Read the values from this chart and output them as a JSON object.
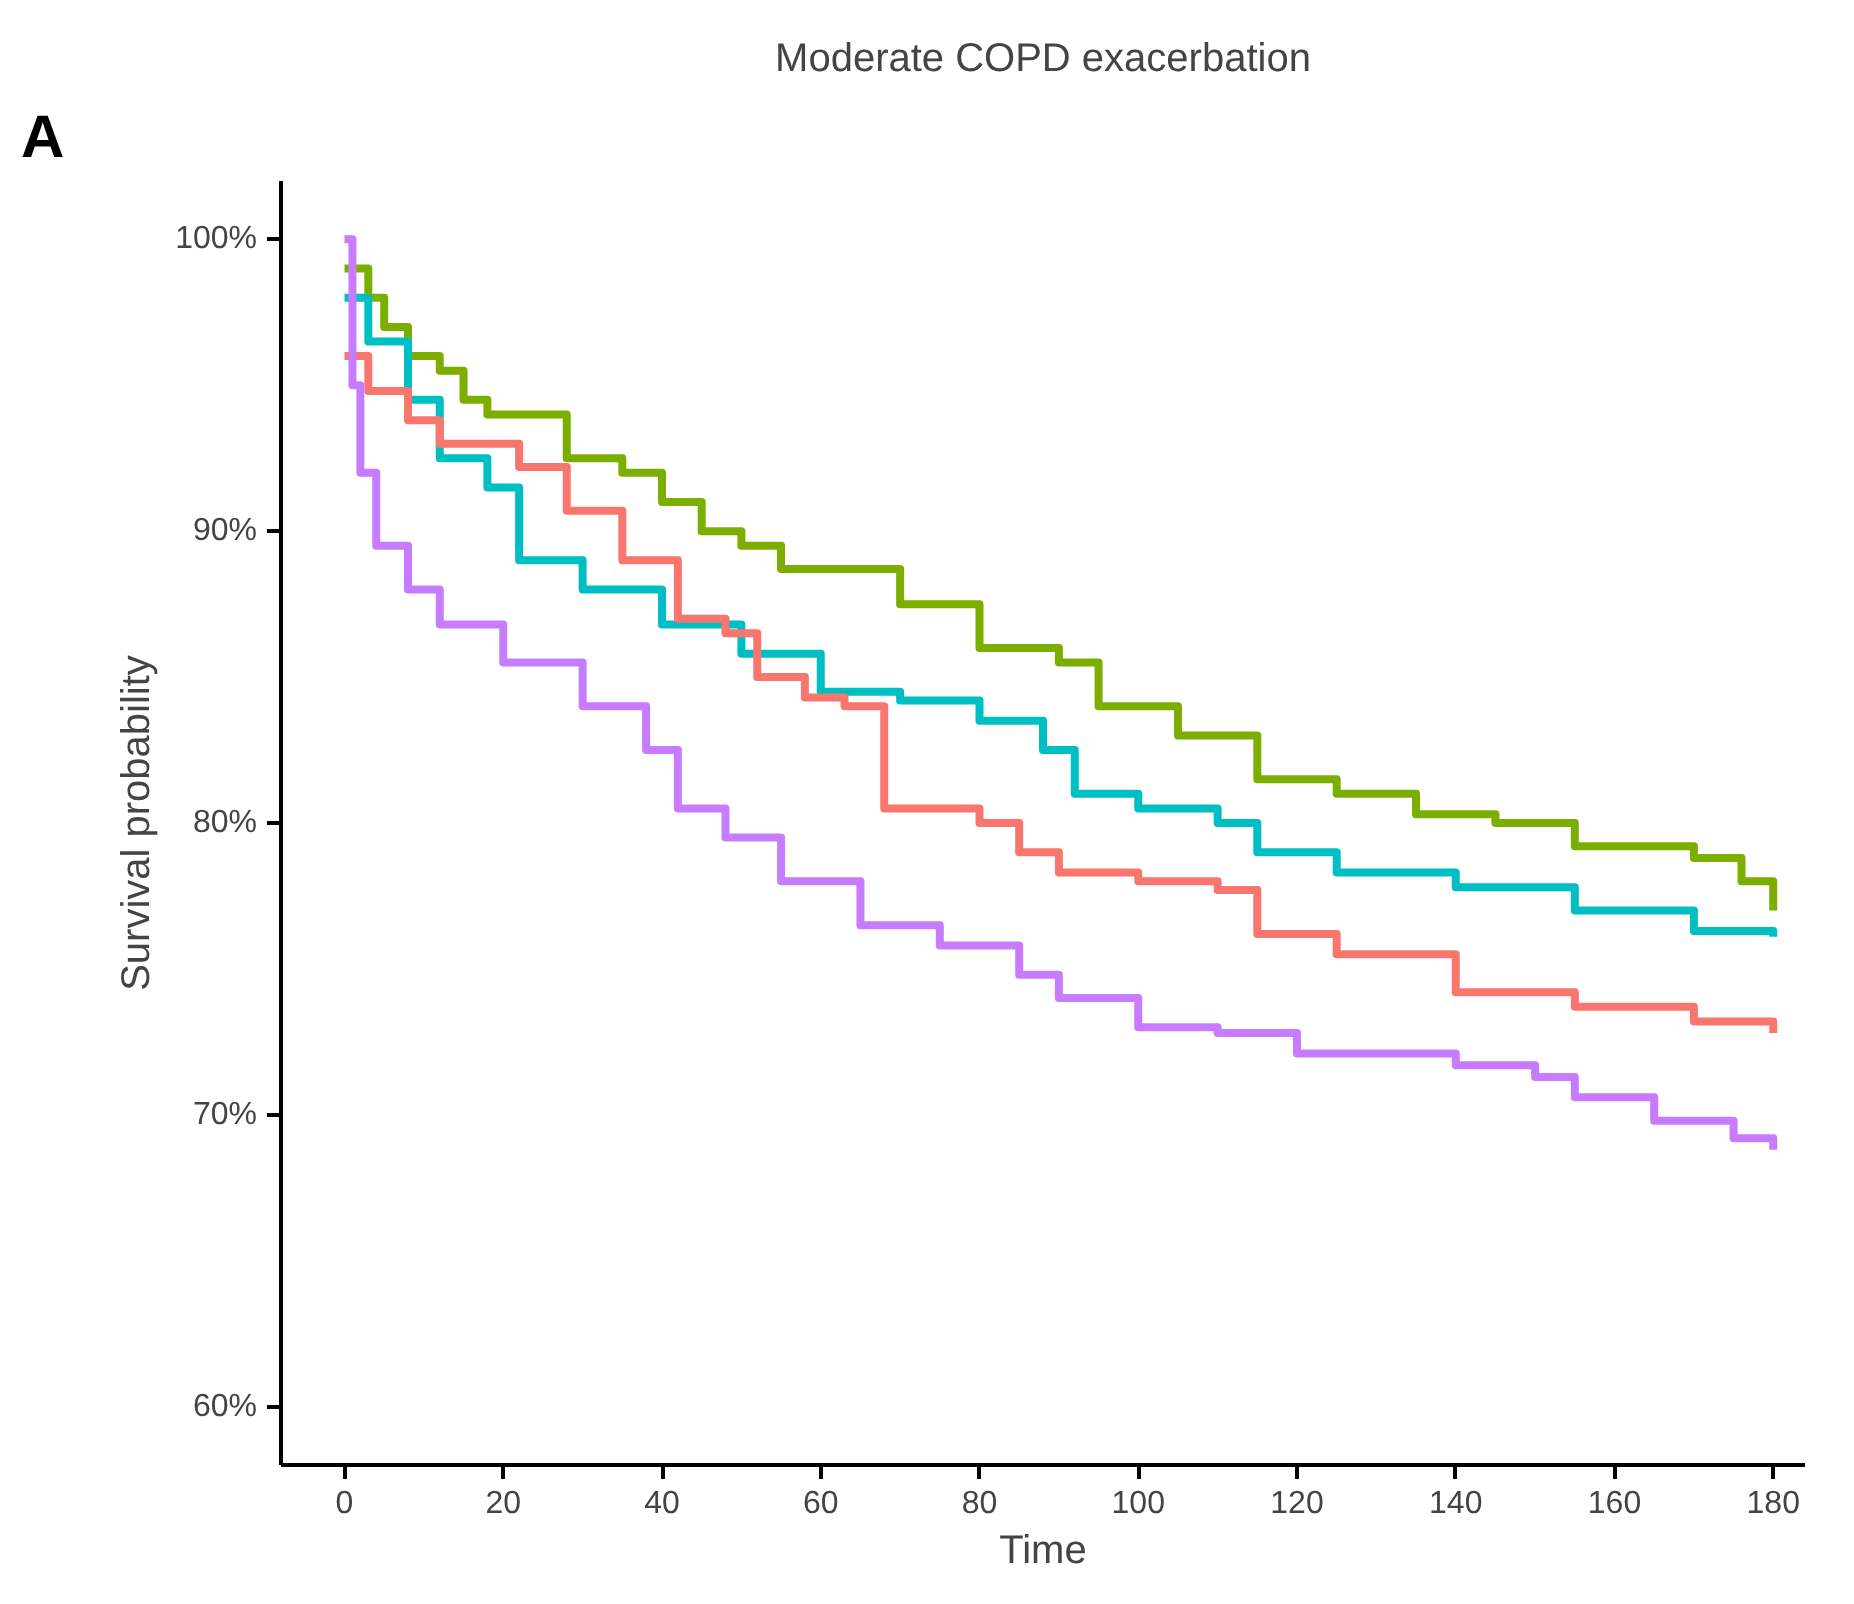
{
  "chart_data": {
    "type": "step",
    "title": "Moderate COPD exacerbation",
    "xlabel": "Time",
    "ylabel": "Survival probability",
    "annotations": [
      "A"
    ],
    "xlim": [
      -8,
      184
    ],
    "ylim": [
      58,
      102
    ],
    "xticks": [
      0,
      20,
      40,
      60,
      80,
      100,
      120,
      140,
      160,
      180
    ],
    "yticks": [
      {
        "value": 60,
        "label": "60%"
      },
      {
        "value": 70,
        "label": "70%"
      },
      {
        "value": 80,
        "label": "80%"
      },
      {
        "value": 90,
        "label": "90%"
      },
      {
        "value": 100,
        "label": "100%"
      }
    ],
    "grid": false,
    "line_style": "solid",
    "marker": "none",
    "series": [
      {
        "color": "#7cae00",
        "x": [
          0,
          3,
          5,
          8,
          12,
          15,
          18,
          25,
          28,
          35,
          40,
          45,
          50,
          55,
          65,
          70,
          80,
          90,
          95,
          105,
          115,
          125,
          135,
          145,
          155,
          170,
          176,
          180
        ],
        "values": [
          99,
          98,
          97,
          96,
          95.5,
          94.5,
          94,
          94,
          92.5,
          92,
          91,
          90,
          89.5,
          88.7,
          88.7,
          87.5,
          86,
          85.5,
          84,
          83,
          81.5,
          81,
          80.3,
          80,
          79.2,
          78.8,
          78,
          77
        ]
      },
      {
        "color": "#00bfc4",
        "x": [
          0,
          3,
          8,
          12,
          18,
          22,
          30,
          40,
          50,
          60,
          70,
          80,
          88,
          92,
          100,
          110,
          115,
          125,
          140,
          155,
          170,
          180
        ],
        "values": [
          98,
          96.5,
          94.5,
          92.5,
          91.5,
          89,
          88,
          86.8,
          85.8,
          84.5,
          84.2,
          83.5,
          82.5,
          81,
          80.5,
          80,
          79,
          78.3,
          77.8,
          77,
          76.3,
          76.1
        ]
      },
      {
        "color": "#f8766d",
        "x": [
          0,
          3,
          8,
          12,
          22,
          28,
          35,
          42,
          48,
          52,
          58,
          63,
          68,
          80,
          85,
          90,
          100,
          110,
          115,
          125,
          140,
          155,
          170,
          180
        ],
        "values": [
          96,
          94.8,
          93.8,
          93,
          92.2,
          90.7,
          89,
          87,
          86.5,
          85,
          84.3,
          84,
          80.5,
          80,
          79,
          78.3,
          78,
          77.7,
          76.2,
          75.5,
          74.2,
          73.7,
          73.2,
          72.8
        ]
      },
      {
        "color": "#c77cff",
        "x": [
          0,
          1,
          2,
          4,
          8,
          12,
          20,
          30,
          38,
          42,
          48,
          55,
          65,
          75,
          85,
          90,
          100,
          110,
          120,
          140,
          150,
          155,
          165,
          175,
          180
        ],
        "values": [
          100,
          95,
          92,
          89.5,
          88,
          86.8,
          85.5,
          84,
          82.5,
          80.5,
          79.5,
          78,
          76.5,
          75.8,
          74.8,
          74,
          73,
          72.8,
          72.1,
          71.7,
          71.3,
          70.6,
          69.8,
          69.2,
          68.8
        ]
      }
    ]
  }
}
